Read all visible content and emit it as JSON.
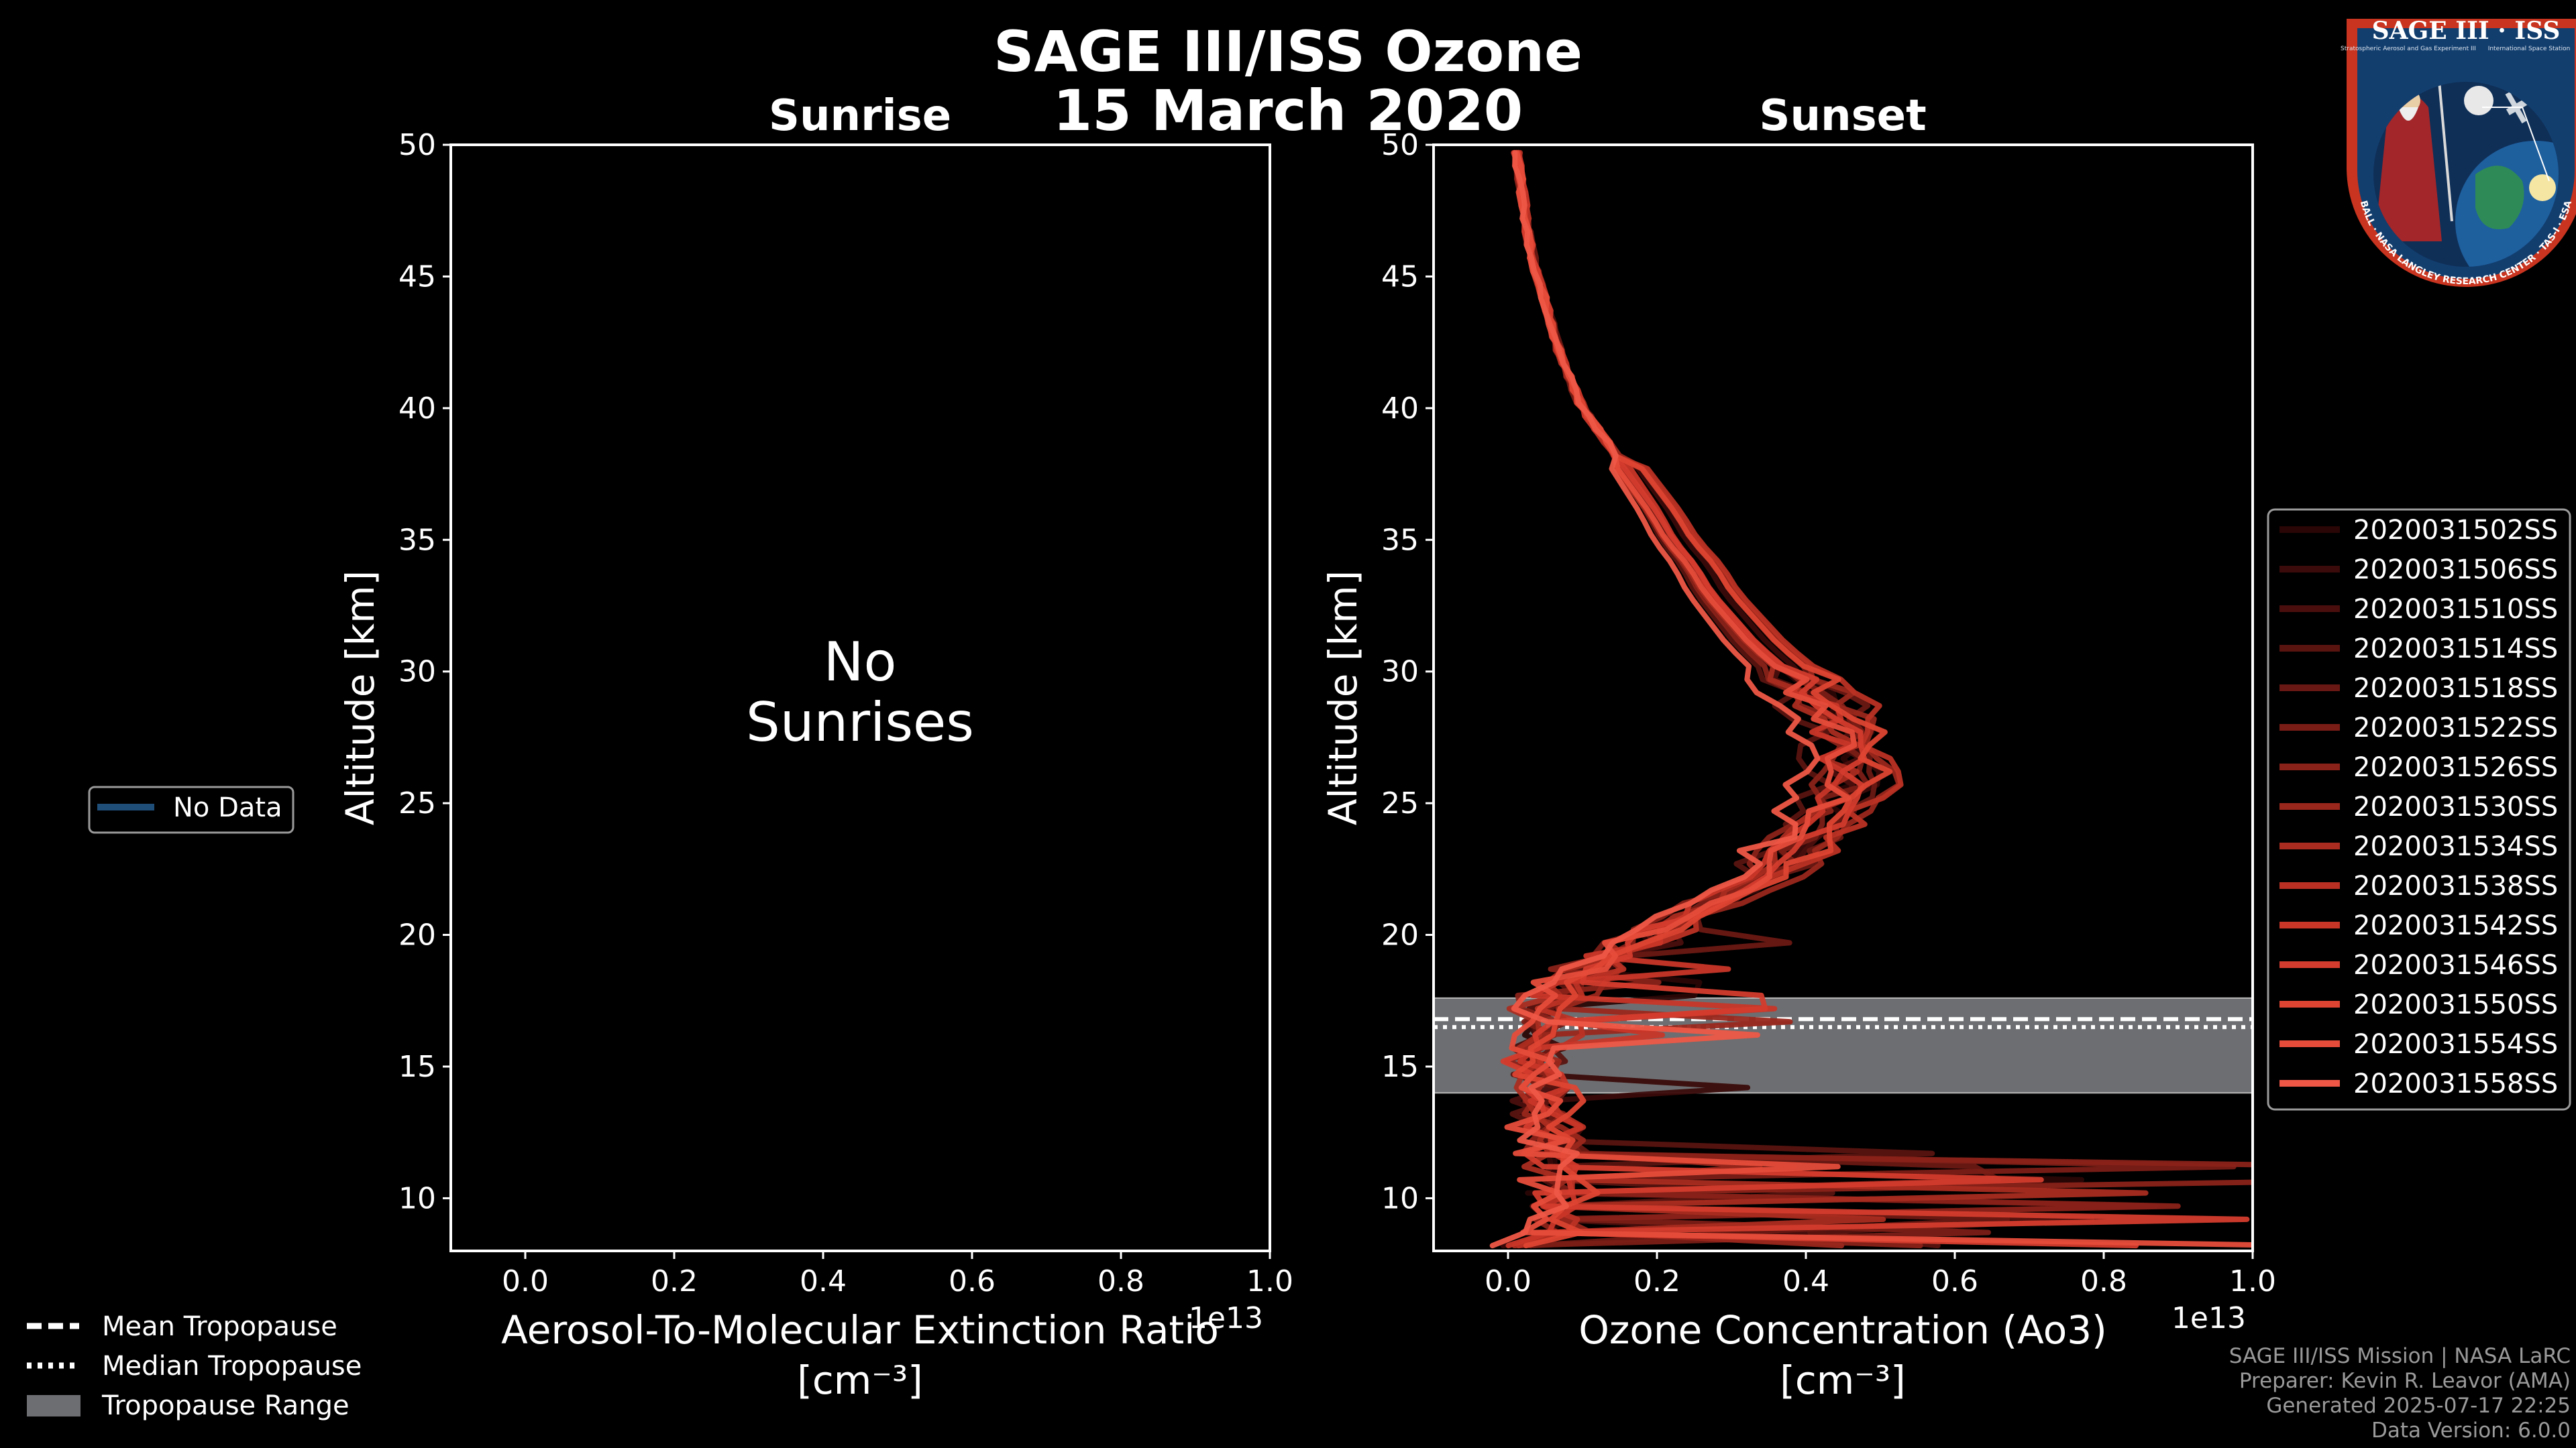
{
  "figure": {
    "title_line1": "SAGE III/ISS Ozone",
    "title_line2": "15 March 2020",
    "footer": [
      "SAGE III/ISS Mission | NASA LaRC",
      "Preparer: Kevin R. Leavor (AMA)",
      "Generated 2025-07-17 22:25",
      "Data Version: 6.0.0"
    ],
    "logo": {
      "text_top": "SAGE III · ISS",
      "text_ring": "BALL · NASA LANGLEY RESEARCH CENTER · TAS-I · ESA",
      "caption_left": "Stratospheric Aerosol and Gas Experiment III",
      "caption_right": "International Space Station"
    }
  },
  "colors": {
    "background": "#000000",
    "axis": "#ffffff",
    "tropopause_fill": "#6d6e71",
    "no_data_line": "#1f4e79",
    "series": [
      "#2a0606",
      "#3a0b0a",
      "#4a0f0d",
      "#5a1410",
      "#6a1813",
      "#7a1d16",
      "#8a2219",
      "#9a271c",
      "#aa2c20",
      "#ba3124",
      "#c83628",
      "#d43c2d",
      "#de4432",
      "#e64c3a",
      "#ee5746"
    ]
  },
  "legend_left": {
    "label": "No Data"
  },
  "legend_bottom": [
    "Mean Tropopause",
    "Median Tropopause",
    "Tropopause Range"
  ],
  "chart_data": [
    {
      "type": "line",
      "title": "Sunrise",
      "xlabel_line1": "Aerosol-To-Molecular Extinction Ratio",
      "xlabel_line2": "[cm⁻³]",
      "ylabel": "Altitude [km]",
      "xlim": [
        -0.1,
        1.0
      ],
      "ylim": [
        8,
        50
      ],
      "xticks": [
        "0.0",
        "0.2",
        "0.4",
        "0.6",
        "0.8",
        "1.0"
      ],
      "yticks": [
        "10",
        "15",
        "20",
        "25",
        "30",
        "35",
        "40",
        "45",
        "50"
      ],
      "offset_text": "1e13",
      "annotation": [
        "No",
        "Sunrises"
      ],
      "series": []
    },
    {
      "type": "line",
      "title": "Sunset",
      "xlabel_line1": "Ozone Concentration (Ao3)",
      "xlabel_line2": "[cm⁻³]",
      "ylabel": "Altitude [km]",
      "xlim": [
        -0.1,
        1.0
      ],
      "ylim": [
        8,
        50
      ],
      "xticks": [
        "0.0",
        "0.2",
        "0.4",
        "0.6",
        "0.8",
        "1.0"
      ],
      "yticks": [
        "10",
        "15",
        "20",
        "25",
        "30",
        "35",
        "40",
        "45",
        "50"
      ],
      "offset_text": "1e13",
      "tropopause_range": [
        14.0,
        17.6
      ],
      "mean_tropopause": 16.8,
      "median_tropopause": 16.5,
      "base_profile": {
        "altitude_km": [
          8.5,
          9,
          10,
          11,
          12,
          13,
          14,
          15,
          16,
          17,
          18,
          19,
          20,
          21,
          22,
          23,
          24,
          25,
          26,
          27,
          28,
          29,
          30,
          31,
          32,
          33,
          34,
          35,
          36,
          38,
          40,
          42,
          44,
          46,
          48,
          50
        ],
        "ozone_1e13": [
          0.06,
          0.06,
          0.06,
          0.06,
          0.06,
          0.05,
          0.05,
          0.04,
          0.04,
          0.04,
          0.07,
          0.12,
          0.19,
          0.26,
          0.32,
          0.37,
          0.41,
          0.44,
          0.45,
          0.45,
          0.44,
          0.41,
          0.37,
          0.33,
          0.3,
          0.27,
          0.25,
          0.22,
          0.2,
          0.15,
          0.1,
          0.07,
          0.05,
          0.03,
          0.02,
          0.01
        ]
      },
      "series": [
        {
          "name": "2020031502SS"
        },
        {
          "name": "2020031506SS"
        },
        {
          "name": "2020031510SS"
        },
        {
          "name": "2020031514SS"
        },
        {
          "name": "2020031518SS"
        },
        {
          "name": "2020031522SS"
        },
        {
          "name": "2020031526SS"
        },
        {
          "name": "2020031530SS"
        },
        {
          "name": "2020031534SS"
        },
        {
          "name": "2020031538SS"
        },
        {
          "name": "2020031542SS"
        },
        {
          "name": "2020031546SS"
        },
        {
          "name": "2020031550SS"
        },
        {
          "name": "2020031554SS"
        },
        {
          "name": "2020031558SS"
        }
      ]
    }
  ]
}
